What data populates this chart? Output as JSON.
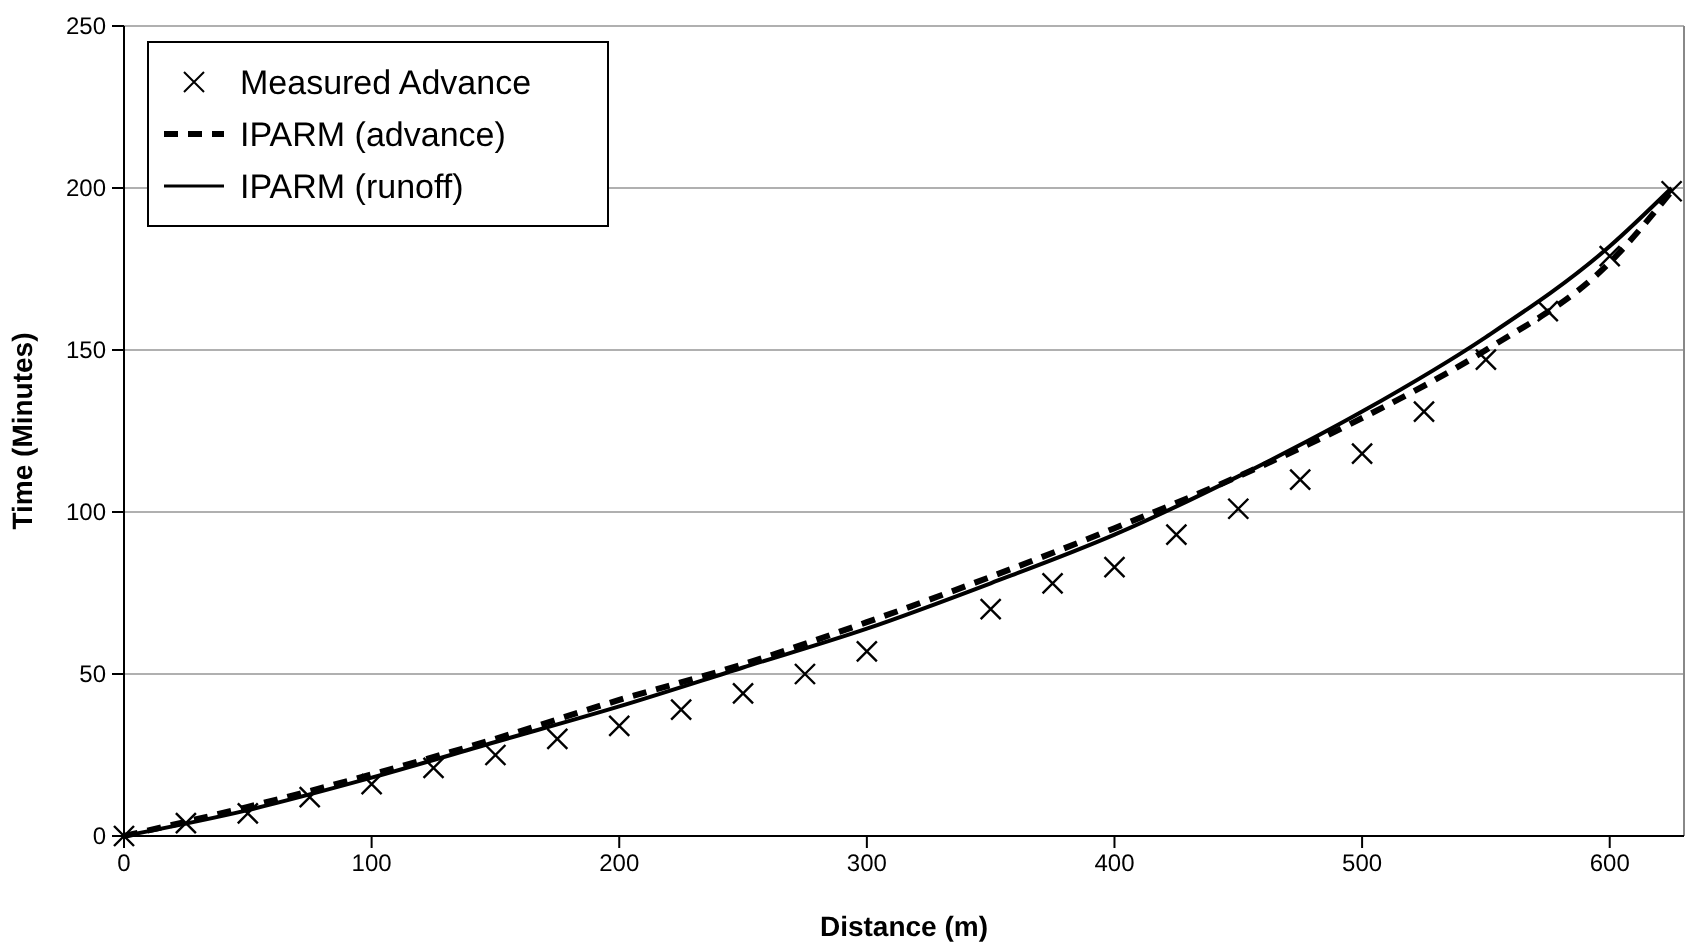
{
  "chart_data": {
    "type": "line",
    "xlabel": "Distance (m)",
    "ylabel": "Time (Minutes)",
    "xlim": [
      0,
      630
    ],
    "ylim": [
      0,
      250
    ],
    "xticks": [
      0,
      100,
      200,
      300,
      400,
      500,
      600
    ],
    "yticks": [
      0,
      50,
      100,
      150,
      200,
      250
    ],
    "grid": "y",
    "legend": "top left",
    "series": [
      {
        "name": "Measured Advance",
        "type": "scatter",
        "marker": "cross",
        "color": "#000000",
        "x": [
          0,
          25,
          50,
          75,
          100,
          125,
          150,
          175,
          200,
          225,
          250,
          275,
          300,
          350,
          375,
          400,
          425,
          450,
          475,
          500,
          525,
          550,
          575,
          600,
          625
        ],
        "values": [
          0,
          4,
          7,
          12,
          16,
          21,
          25,
          30,
          34,
          39,
          44,
          50,
          57,
          70,
          78,
          83,
          93,
          101,
          110,
          118,
          131,
          147,
          162,
          179,
          199
        ]
      },
      {
        "name": "IPARM (advance)",
        "line_style": "dashed",
        "color": "#000000",
        "x": [
          0,
          50,
          100,
          150,
          200,
          250,
          300,
          350,
          400,
          450,
          500,
          550,
          600,
          625
        ],
        "values": [
          0,
          9,
          19,
          30,
          42,
          53,
          66,
          80,
          95,
          111,
          129,
          150,
          177,
          199
        ]
      },
      {
        "name": "IPARM (runoff)",
        "line_style": "solid",
        "color": "#000000",
        "x": [
          0,
          50,
          100,
          150,
          200,
          250,
          300,
          350,
          400,
          450,
          500,
          550,
          600,
          625
        ],
        "values": [
          0,
          8,
          18,
          29,
          40,
          52,
          64,
          78,
          93,
          111,
          131,
          154,
          182,
          200
        ]
      }
    ]
  }
}
